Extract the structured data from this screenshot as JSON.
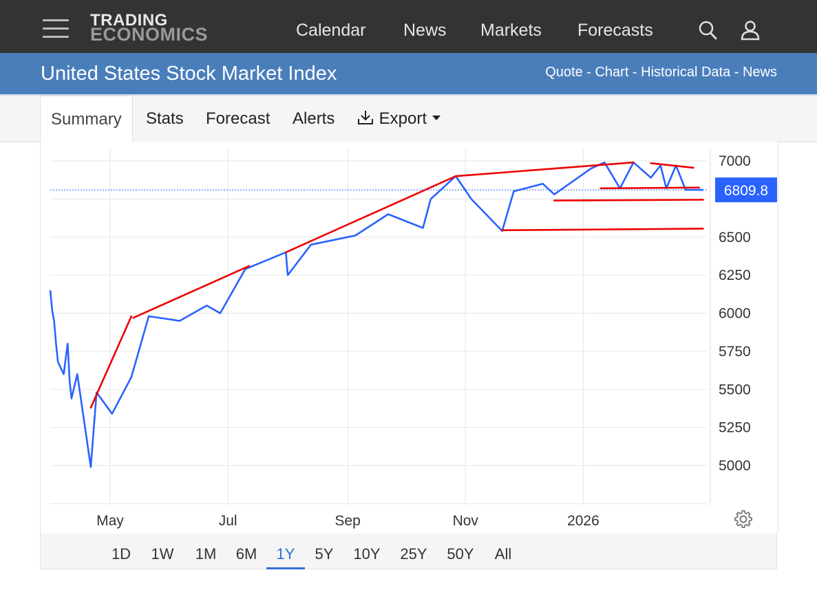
{
  "header": {
    "logo_line1": "TRADING",
    "logo_line2": "ECONOMICS",
    "nav": [
      "Calendar",
      "News",
      "Markets",
      "Forecasts"
    ],
    "icons": [
      "menu-icon",
      "search-icon",
      "user-icon"
    ]
  },
  "subheader": {
    "title": "United States Stock Market Index",
    "links": [
      "Quote",
      "Chart",
      "Historical Data",
      "News"
    ],
    "separator": " - "
  },
  "tabs": {
    "items": [
      "Summary",
      "Stats",
      "Forecast",
      "Alerts"
    ],
    "export_label": "Export",
    "active": "Summary"
  },
  "ranges": {
    "items": [
      "1D",
      "1W",
      "1M",
      "6M",
      "1Y",
      "5Y",
      "10Y",
      "25Y",
      "50Y",
      "All"
    ],
    "active": "1Y"
  },
  "colors": {
    "header_bg": "#333333",
    "title_bar_bg": "#4a7ebb",
    "series_line": "#2962ff",
    "trendlines": "#ee0000",
    "price_tag_bg": "#2962ff",
    "active_range": "#2f6fd6"
  },
  "chart_data": {
    "type": "line",
    "series": [
      {
        "x": [
          "2025-03-31",
          "2025-04-01",
          "2025-04-02",
          "2025-04-03",
          "2025-04-04",
          "2025-04-07",
          "2025-04-08",
          "2025-04-09",
          "2025-04-10",
          "2025-04-11",
          "2025-04-14",
          "2025-04-21",
          "2025-04-24",
          "2025-05-02",
          "2025-05-12",
          "2025-05-21",
          "2025-06-06",
          "2025-06-20",
          "2025-06-27",
          "2025-07-10",
          "2025-07-31",
          "2025-08-01",
          "2025-08-13",
          "2025-09-05",
          "2025-09-22",
          "2025-10-10",
          "2025-10-14",
          "2025-10-27",
          "2025-11-04",
          "2025-11-20",
          "2025-11-26",
          "2025-12-11",
          "2025-12-17",
          "2026-01-05",
          "2026-01-12",
          "2026-01-20",
          "2026-01-27",
          "2026-02-05",
          "2026-02-10",
          "2026-02-13",
          "2026-02-18",
          "2026-02-23",
          "2026-03-04"
        ],
        "values": [
          6150,
          6020,
          5950,
          5800,
          5680,
          5600,
          5700,
          5800,
          5560,
          5440,
          5600,
          4990,
          5480,
          5340,
          5580,
          5980,
          5950,
          6050,
          6000,
          6290,
          6400,
          6250,
          6450,
          6510,
          6650,
          6560,
          6750,
          6900,
          6750,
          6540,
          6800,
          6850,
          6780,
          6950,
          6990,
          6820,
          6990,
          6890,
          6970,
          6820,
          6970,
          6810,
          6809.8
        ]
      }
    ],
    "last_value": "6809.8",
    "ylim": [
      4750,
      7050
    ],
    "yticks": [
      "7000",
      "6500",
      "6250",
      "6000",
      "5750",
      "5500",
      "5250",
      "5000"
    ],
    "xticks": [
      "May",
      "Jul",
      "Sep",
      "Nov",
      "2026"
    ],
    "xlim": [
      "2025-03-31",
      "2026-03-06"
    ],
    "grid": true,
    "yaxis_side": "right",
    "trendlines": [
      {
        "from": [
          "2025-04-21",
          5380
        ],
        "to": [
          "2025-05-12",
          5980
        ]
      },
      {
        "from": [
          "2025-05-13",
          5970
        ],
        "to": [
          "2025-07-12",
          6310
        ]
      },
      {
        "from": [
          "2025-07-31",
          6400
        ],
        "to": [
          "2025-10-27",
          6900
        ]
      },
      {
        "from": [
          "2025-10-27",
          6900
        ],
        "to": [
          "2026-01-27",
          6990
        ]
      },
      {
        "from": [
          "2026-02-05",
          6985
        ],
        "to": [
          "2026-02-27",
          6955
        ]
      },
      {
        "from": [
          "2026-01-10",
          6820
        ],
        "to": [
          "2026-03-02",
          6825
        ]
      },
      {
        "from": [
          "2025-12-17",
          6740
        ],
        "to": [
          "2026-03-04",
          6745
        ]
      },
      {
        "from": [
          "2025-11-20",
          6545
        ],
        "to": [
          "2026-03-04",
          6555
        ]
      }
    ]
  }
}
